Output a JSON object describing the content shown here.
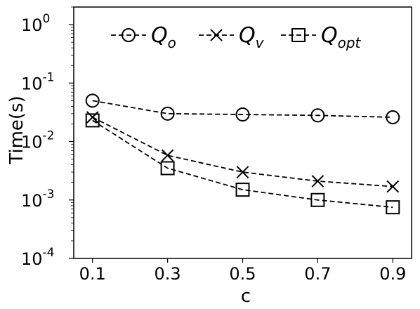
{
  "chart_data": {
    "type": "line",
    "xlabel": "c",
    "ylabel": "Time(s)",
    "yscale": "log",
    "ylim": [
      0.0001,
      2
    ],
    "xlim": [
      0.05,
      0.95
    ],
    "x": [
      0.1,
      0.3,
      0.5,
      0.7,
      0.9
    ],
    "x_tick_labels": [
      "0.1",
      "0.3",
      "0.5",
      "0.7",
      "0.9"
    ],
    "y_ticks": [
      {
        "value": 0.0001,
        "base": "10",
        "exp": "-4"
      },
      {
        "value": 0.001,
        "base": "10",
        "exp": "-3"
      },
      {
        "value": 0.01,
        "base": "10",
        "exp": "-2"
      },
      {
        "value": 0.1,
        "base": "10",
        "exp": "-1"
      },
      {
        "value": 1,
        "base": "10",
        "exp": "0"
      }
    ],
    "legend_position": "top",
    "series": [
      {
        "name": "Q",
        "subscript": "o",
        "marker": "circle",
        "values": [
          0.05,
          0.03,
          0.029,
          0.028,
          0.026
        ]
      },
      {
        "name": "Q",
        "subscript": "v",
        "marker": "x",
        "values": [
          0.026,
          0.0058,
          0.003,
          0.0021,
          0.0017
        ]
      },
      {
        "name": "Q",
        "subscript": "opt",
        "marker": "square",
        "values": [
          0.023,
          0.0035,
          0.0015,
          0.001,
          0.00075
        ]
      }
    ]
  }
}
